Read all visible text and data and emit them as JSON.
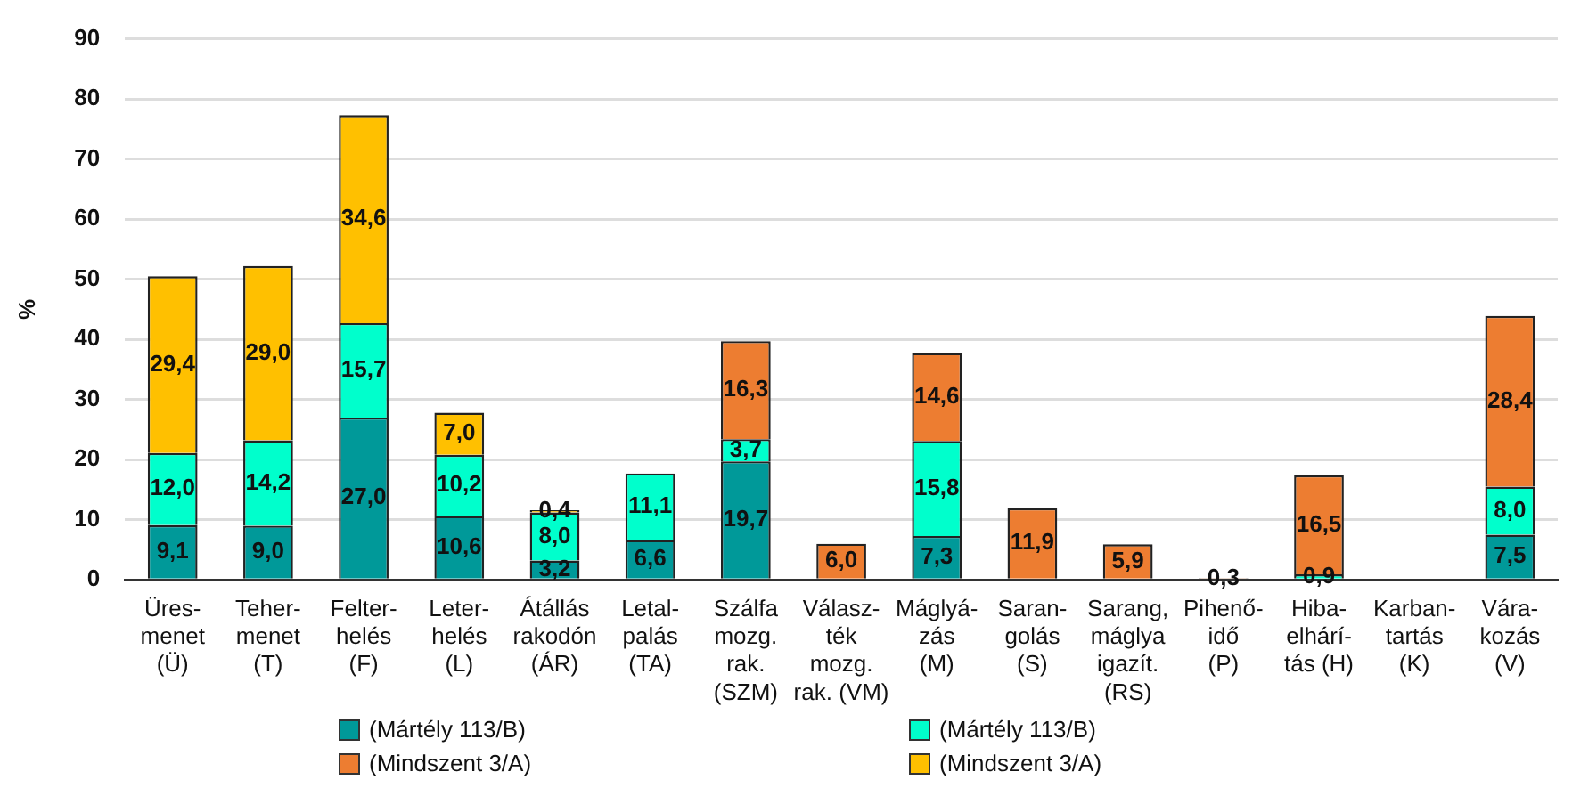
{
  "chart_data": {
    "type": "bar",
    "stacked": true,
    "ylabel": "%",
    "ylim": [
      0,
      90
    ],
    "yticks": [
      0,
      10,
      20,
      30,
      40,
      50,
      60,
      70,
      80,
      90
    ],
    "grid": "y",
    "legend": "bottom",
    "categories": [
      "Üres-\nmenet\n(Ü)",
      "Teher-\nmenet\n(T)",
      "Felter-\nhelés\n(F)",
      "Leter-\nhelés\n(L)",
      "Átállás\nrakodón\n(ÁR)",
      "Letal-\npalás\n(TA)",
      "Szálfa\nmozg.\nrak.\n(SZM)",
      "Válasz-\nték\nmozg.\nrak. (VM)",
      "Máglyá-\nzás\n(M)",
      "Saran-\ngolás\n(S)",
      "Sarang,\nmáglya\nigazít.\n(RS)",
      "Pihenő-\nidő\n(P)",
      "Hiba-\nelhárí-\ntás (H)",
      "Karban-\ntartás\n(K)",
      "Vára-\nkozás\n(V)"
    ],
    "series": [
      {
        "name": "(Mártély 113/B)",
        "color": "#009999",
        "values": [
          9.1,
          9.0,
          27.0,
          10.6,
          3.2,
          6.6,
          19.7,
          null,
          7.3,
          null,
          null,
          null,
          null,
          null,
          7.5
        ],
        "value_labels": [
          "9,1",
          "9,0",
          "27,0",
          "10,6",
          "3,2",
          "6,6",
          "19,7",
          null,
          "7,3",
          null,
          null,
          null,
          null,
          null,
          "7,5"
        ]
      },
      {
        "name": "(Mártély 113/B)",
        "color": "#00ffcc",
        "values": [
          12.0,
          14.2,
          15.7,
          10.2,
          8.0,
          11.1,
          3.7,
          null,
          15.8,
          null,
          null,
          null,
          0.9,
          null,
          8.0
        ],
        "value_labels": [
          "12,0",
          "14,2",
          "15,7",
          "10,2",
          "8,0",
          "11,1",
          "3,7",
          null,
          "15,8",
          null,
          null,
          null,
          "0,9",
          null,
          "8,0"
        ]
      },
      {
        "name": "(Mindszent 3/A)",
        "color": "#ed7d31",
        "values": [
          null,
          null,
          null,
          null,
          null,
          null,
          16.3,
          6.0,
          14.6,
          11.9,
          5.9,
          0.3,
          16.5,
          null,
          28.4
        ],
        "value_labels": [
          null,
          null,
          null,
          null,
          null,
          null,
          "16,3",
          "6,0",
          "14,6",
          "11,9",
          "5,9",
          "0,3",
          "16,5",
          null,
          "28,4"
        ]
      },
      {
        "name": "(Mindszent 3/A)",
        "color": "#ffc000",
        "values": [
          29.4,
          29.0,
          34.6,
          7.0,
          0.4,
          null,
          null,
          null,
          null,
          null,
          null,
          null,
          null,
          null,
          null
        ],
        "value_labels": [
          "29,4",
          "29,0",
          "34,6",
          "7,0",
          "0,4",
          null,
          null,
          null,
          null,
          null,
          null,
          null,
          null,
          null,
          null
        ]
      }
    ]
  }
}
